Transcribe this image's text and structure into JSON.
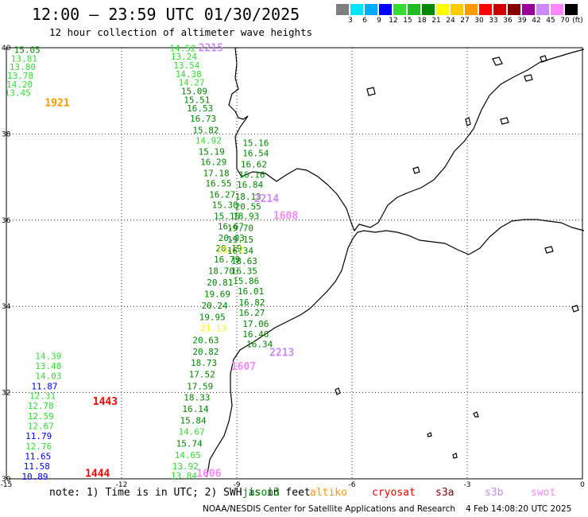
{
  "header": {
    "title": "12:00 – 23:59 UTC 01/30/2025",
    "subtitle": "12 hour collection of altimeter wave heights"
  },
  "scale": {
    "unit": "(ft)",
    "labels": [
      "3",
      "6",
      "9",
      "12",
      "15",
      "18",
      "21",
      "24",
      "27",
      "30",
      "33",
      "36",
      "39",
      "42",
      "45",
      "70"
    ],
    "colors": [
      "#7f7f7f",
      "#00e5ff",
      "#00aaff",
      "#0000ff",
      "#33dd33",
      "#22bb22",
      "#008800",
      "#ffff00",
      "#ffcc00",
      "#ff9900",
      "#ff0000",
      "#cc0000",
      "#880000",
      "#990099",
      "#cc88ff",
      "#ff88ff",
      "#000000"
    ]
  },
  "axes": {
    "lon_ticks": [
      "-15",
      "-12",
      "-9",
      "-6",
      "-3",
      "0"
    ],
    "lat_ticks": [
      "40",
      "38",
      "36",
      "34",
      "32",
      "30"
    ]
  },
  "chart_data": {
    "type": "map",
    "lon_range": [
      -15,
      0
    ],
    "lat_range": [
      30,
      40
    ],
    "grid": true,
    "track_ids": [
      {
        "id": "1921",
        "lon": -14.0,
        "lat": 38.64,
        "color": "#ff9900"
      },
      {
        "id": "2215",
        "lon": -10.0,
        "lat": 39.92,
        "color": "#cc88ff"
      },
      {
        "id": "2214",
        "lon": -8.55,
        "lat": 36.42,
        "color": "#cc88ff"
      },
      {
        "id": "1608",
        "lon": -8.05,
        "lat": 36.02,
        "color": "#ff88ff"
      },
      {
        "id": "2213",
        "lon": -8.15,
        "lat": 32.85,
        "color": "#cc88ff"
      },
      {
        "id": "1607",
        "lon": -9.15,
        "lat": 32.53,
        "color": "#ff88ff"
      },
      {
        "id": "1443",
        "lon": -12.75,
        "lat": 31.72,
        "color": "#ff0000"
      },
      {
        "id": "1444",
        "lon": -12.95,
        "lat": 30.05,
        "color": "#ff0000"
      },
      {
        "id": "1606",
        "lon": -10.05,
        "lat": 30.05,
        "color": "#ff88ff"
      }
    ],
    "tracks": [
      {
        "name": "track-1921",
        "color_key": "swh",
        "points": [
          {
            "lon": -14.8,
            "lat": 39.88,
            "v": "15.05",
            "c": "#008800"
          },
          {
            "lon": -14.88,
            "lat": 39.68,
            "v": "13.81",
            "c": "#33dd33"
          },
          {
            "lon": -14.92,
            "lat": 39.48,
            "v": "13.80",
            "c": "#33dd33"
          },
          {
            "lon": -14.98,
            "lat": 39.28,
            "v": "13.78",
            "c": "#33dd33"
          },
          {
            "lon": -15.0,
            "lat": 39.08,
            "v": "14.20",
            "c": "#33dd33"
          },
          {
            "lon": -15.05,
            "lat": 38.88,
            "v": "13.45",
            "c": "#33dd33"
          }
        ]
      },
      {
        "name": "track-2215",
        "color_key": "swh",
        "points": [
          {
            "lon": -10.75,
            "lat": 39.92,
            "v": "14.52",
            "c": "#33dd33"
          },
          {
            "lon": -10.72,
            "lat": 39.72,
            "v": "13.24",
            "c": "#33dd33"
          },
          {
            "lon": -10.65,
            "lat": 39.52,
            "v": "13.54",
            "c": "#33dd33"
          },
          {
            "lon": -10.6,
            "lat": 39.32,
            "v": "14.38",
            "c": "#33dd33"
          },
          {
            "lon": -10.52,
            "lat": 39.12,
            "v": "14.27",
            "c": "#33dd33"
          },
          {
            "lon": -10.45,
            "lat": 38.92,
            "v": "15.09",
            "c": "#008800"
          },
          {
            "lon": -10.38,
            "lat": 38.72,
            "v": "15.51",
            "c": "#008800"
          },
          {
            "lon": -10.3,
            "lat": 38.52,
            "v": "16.53",
            "c": "#008800"
          },
          {
            "lon": -10.22,
            "lat": 38.28,
            "v": "16.73",
            "c": "#008800"
          },
          {
            "lon": -10.15,
            "lat": 38.02,
            "v": "15.82",
            "c": "#008800"
          },
          {
            "lon": -10.08,
            "lat": 37.78,
            "v": "14.92",
            "c": "#33dd33"
          },
          {
            "lon": -10.0,
            "lat": 37.52,
            "v": "15.19",
            "c": "#008800"
          },
          {
            "lon": -9.95,
            "lat": 37.28,
            "v": "16.29",
            "c": "#008800"
          },
          {
            "lon": -9.88,
            "lat": 37.02,
            "v": "17.18",
            "c": "#008800"
          },
          {
            "lon": -9.82,
            "lat": 36.78,
            "v": "16.55",
            "c": "#008800"
          },
          {
            "lon": -9.72,
            "lat": 36.52,
            "v": "16.27",
            "c": "#008800"
          },
          {
            "lon": -9.65,
            "lat": 36.28,
            "v": "15.30",
            "c": "#008800"
          },
          {
            "lon": -9.6,
            "lat": 36.02,
            "v": "15.15",
            "c": "#008800"
          },
          {
            "lon": -9.5,
            "lat": 35.78,
            "v": "16.67",
            "c": "#008800"
          },
          {
            "lon": -9.48,
            "lat": 35.52,
            "v": "20.03",
            "c": "#008800"
          },
          {
            "lon": -9.55,
            "lat": 35.28,
            "v": "20.19",
            "c": "#008800"
          },
          {
            "lon": -9.6,
            "lat": 35.02,
            "v": "16.79",
            "c": "#008800"
          },
          {
            "lon": -9.75,
            "lat": 34.75,
            "v": "18.70",
            "c": "#008800"
          },
          {
            "lon": -9.78,
            "lat": 34.48,
            "v": "20.81",
            "c": "#008800"
          },
          {
            "lon": -9.85,
            "lat": 34.22,
            "v": "19.69",
            "c": "#008800"
          },
          {
            "lon": -9.92,
            "lat": 33.95,
            "v": "20.24",
            "c": "#008800"
          },
          {
            "lon": -9.98,
            "lat": 33.68,
            "v": "19.95",
            "c": "#008800"
          },
          {
            "lon": -9.95,
            "lat": 33.42,
            "v": "21.13",
            "c": "#ffff00"
          },
          {
            "lon": -10.15,
            "lat": 33.15,
            "v": "20.63",
            "c": "#008800"
          },
          {
            "lon": -10.15,
            "lat": 32.88,
            "v": "20.82",
            "c": "#008800"
          },
          {
            "lon": -10.2,
            "lat": 32.62,
            "v": "18.73",
            "c": "#008800"
          },
          {
            "lon": -10.25,
            "lat": 32.35,
            "v": "17.52",
            "c": "#008800"
          },
          {
            "lon": -10.3,
            "lat": 32.08,
            "v": "17.59",
            "c": "#008800"
          },
          {
            "lon": -10.38,
            "lat": 31.82,
            "v": "18.33",
            "c": "#008800"
          },
          {
            "lon": -10.42,
            "lat": 31.55,
            "v": "16.14",
            "c": "#008800"
          },
          {
            "lon": -10.48,
            "lat": 31.28,
            "v": "15.84",
            "c": "#008800"
          },
          {
            "lon": -10.52,
            "lat": 31.02,
            "v": "14.67",
            "c": "#33dd33"
          },
          {
            "lon": -10.58,
            "lat": 30.75,
            "v": "15.74",
            "c": "#008800"
          },
          {
            "lon": -10.62,
            "lat": 30.48,
            "v": "14.65",
            "c": "#33dd33"
          },
          {
            "lon": -10.68,
            "lat": 30.22,
            "v": "13.92",
            "c": "#33dd33"
          },
          {
            "lon": -10.72,
            "lat": 30.0,
            "v": "13.84",
            "c": "#33dd33"
          }
        ]
      },
      {
        "name": "track-2214",
        "color_key": "swh",
        "points": [
          {
            "lon": -8.85,
            "lat": 37.72,
            "v": "15.16",
            "c": "#008800"
          },
          {
            "lon": -8.85,
            "lat": 37.48,
            "v": "16.54",
            "c": "#008800"
          },
          {
            "lon": -8.9,
            "lat": 37.22,
            "v": "16.62",
            "c": "#008800"
          },
          {
            "lon": -8.95,
            "lat": 36.98,
            "v": "16.16",
            "c": "#008800"
          },
          {
            "lon": -9.0,
            "lat": 36.75,
            "v": "16.84",
            "c": "#008800"
          },
          {
            "lon": -9.05,
            "lat": 36.48,
            "v": "18.13",
            "c": "#008800"
          },
          {
            "lon": -9.05,
            "lat": 36.25,
            "v": "20.55",
            "c": "#008800"
          },
          {
            "lon": -9.1,
            "lat": 36.02,
            "v": "18.93",
            "c": "#008800"
          },
          {
            "lon": -9.25,
            "lat": 35.75,
            "v": "19.70",
            "c": "#008800"
          },
          {
            "lon": -9.25,
            "lat": 35.48,
            "v": "19.15",
            "c": "#008800"
          },
          {
            "lon": -9.5,
            "lat": 35.25,
            "v": "21.12",
            "c": "#ffff00"
          },
          {
            "lon": -9.25,
            "lat": 35.22,
            "v": "16.34",
            "c": "#008800"
          },
          {
            "lon": -9.15,
            "lat": 34.98,
            "v": "18.63",
            "c": "#008800"
          },
          {
            "lon": -9.15,
            "lat": 34.75,
            "v": "16.35",
            "c": "#008800"
          },
          {
            "lon": -9.1,
            "lat": 34.52,
            "v": "15.86",
            "c": "#008800"
          },
          {
            "lon": -8.98,
            "lat": 34.28,
            "v": "16.01",
            "c": "#008800"
          },
          {
            "lon": -8.95,
            "lat": 34.02,
            "v": "16.82",
            "c": "#008800"
          },
          {
            "lon": -8.95,
            "lat": 33.78,
            "v": "16.27",
            "c": "#008800"
          },
          {
            "lon": -8.85,
            "lat": 33.52,
            "v": "17.06",
            "c": "#008800"
          },
          {
            "lon": -8.85,
            "lat": 33.28,
            "v": "16.46",
            "c": "#008800"
          },
          {
            "lon": -8.75,
            "lat": 33.05,
            "v": "16.34",
            "c": "#008800"
          }
        ]
      },
      {
        "name": "track-1443-1444",
        "color_key": "swh",
        "points": [
          {
            "lon": -14.25,
            "lat": 32.78,
            "v": "14.39",
            "c": "#33dd33"
          },
          {
            "lon": -14.25,
            "lat": 32.55,
            "v": "13.48",
            "c": "#33dd33"
          },
          {
            "lon": -14.25,
            "lat": 32.32,
            "v": "14.03",
            "c": "#33dd33"
          },
          {
            "lon": -14.35,
            "lat": 32.08,
            "v": "11.87",
            "c": "#0000ff"
          },
          {
            "lon": -14.4,
            "lat": 31.85,
            "v": "12.31",
            "c": "#33dd33"
          },
          {
            "lon": -14.45,
            "lat": 31.62,
            "v": "12.78",
            "c": "#33dd33"
          },
          {
            "lon": -14.45,
            "lat": 31.38,
            "v": "12.59",
            "c": "#33dd33"
          },
          {
            "lon": -14.45,
            "lat": 31.15,
            "v": "12.67",
            "c": "#33dd33"
          },
          {
            "lon": -14.5,
            "lat": 30.92,
            "v": "11.79",
            "c": "#0000ff"
          },
          {
            "lon": -14.5,
            "lat": 30.68,
            "v": "12.76",
            "c": "#33dd33"
          },
          {
            "lon": -14.52,
            "lat": 30.45,
            "v": "11.65",
            "c": "#0000ff"
          },
          {
            "lon": -14.55,
            "lat": 30.22,
            "v": "11.58",
            "c": "#0000ff"
          },
          {
            "lon": -14.6,
            "lat": 29.98,
            "v": "10.89",
            "c": "#0000ff"
          }
        ]
      }
    ]
  },
  "footer": {
    "note": "note: 1) Time is in UTC; 2) SWH is in feet",
    "satellites": [
      {
        "name": "jason3",
        "color": "#008800"
      },
      {
        "name": "altiko",
        "color": "#ff9900"
      },
      {
        "name": "cryosat",
        "color": "#ff0000"
      },
      {
        "name": "s3a",
        "color": "#880000"
      },
      {
        "name": "s3b",
        "color": "#cc88ff"
      },
      {
        "name": "swot",
        "color": "#ff88ff"
      }
    ],
    "credit": "NOAA/NESDIS Center for Satellite Applications and Research",
    "timestamp": "4 Feb 14:08:20 UTC 2025"
  }
}
